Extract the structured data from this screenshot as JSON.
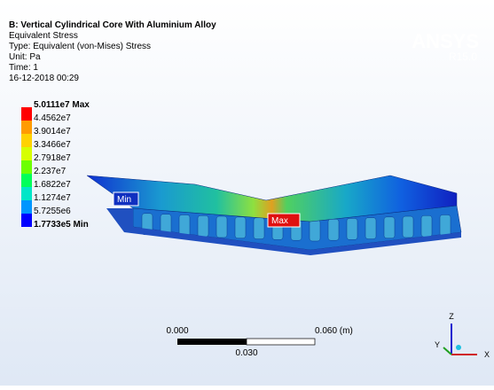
{
  "header": {
    "title": "B: Vertical Cylindrical Core With Aluminium Alloy",
    "lines": [
      "Equivalent Stress",
      "Type: Equivalent (von-Mises) Stress",
      "Unit: Pa",
      "Time: 1",
      "16-12-2018 00:29"
    ]
  },
  "logo": {
    "name": "ANSYS",
    "version": "R15.0"
  },
  "legend": [
    "5.0111e7 Max",
    "4.4562e7",
    "3.9014e7",
    "3.3466e7",
    "2.7918e7",
    "2.237e7",
    "1.6822e7",
    "1.1274e7",
    "5.7255e6",
    "1.7733e5 Min"
  ],
  "probes": {
    "min": "Min",
    "max": "Max"
  },
  "scale_bar": {
    "start": "0.000",
    "end": "0.060 (m)",
    "middle": "0.030"
  },
  "triad": {
    "x": "X",
    "y": "Y",
    "z": "Z"
  }
}
